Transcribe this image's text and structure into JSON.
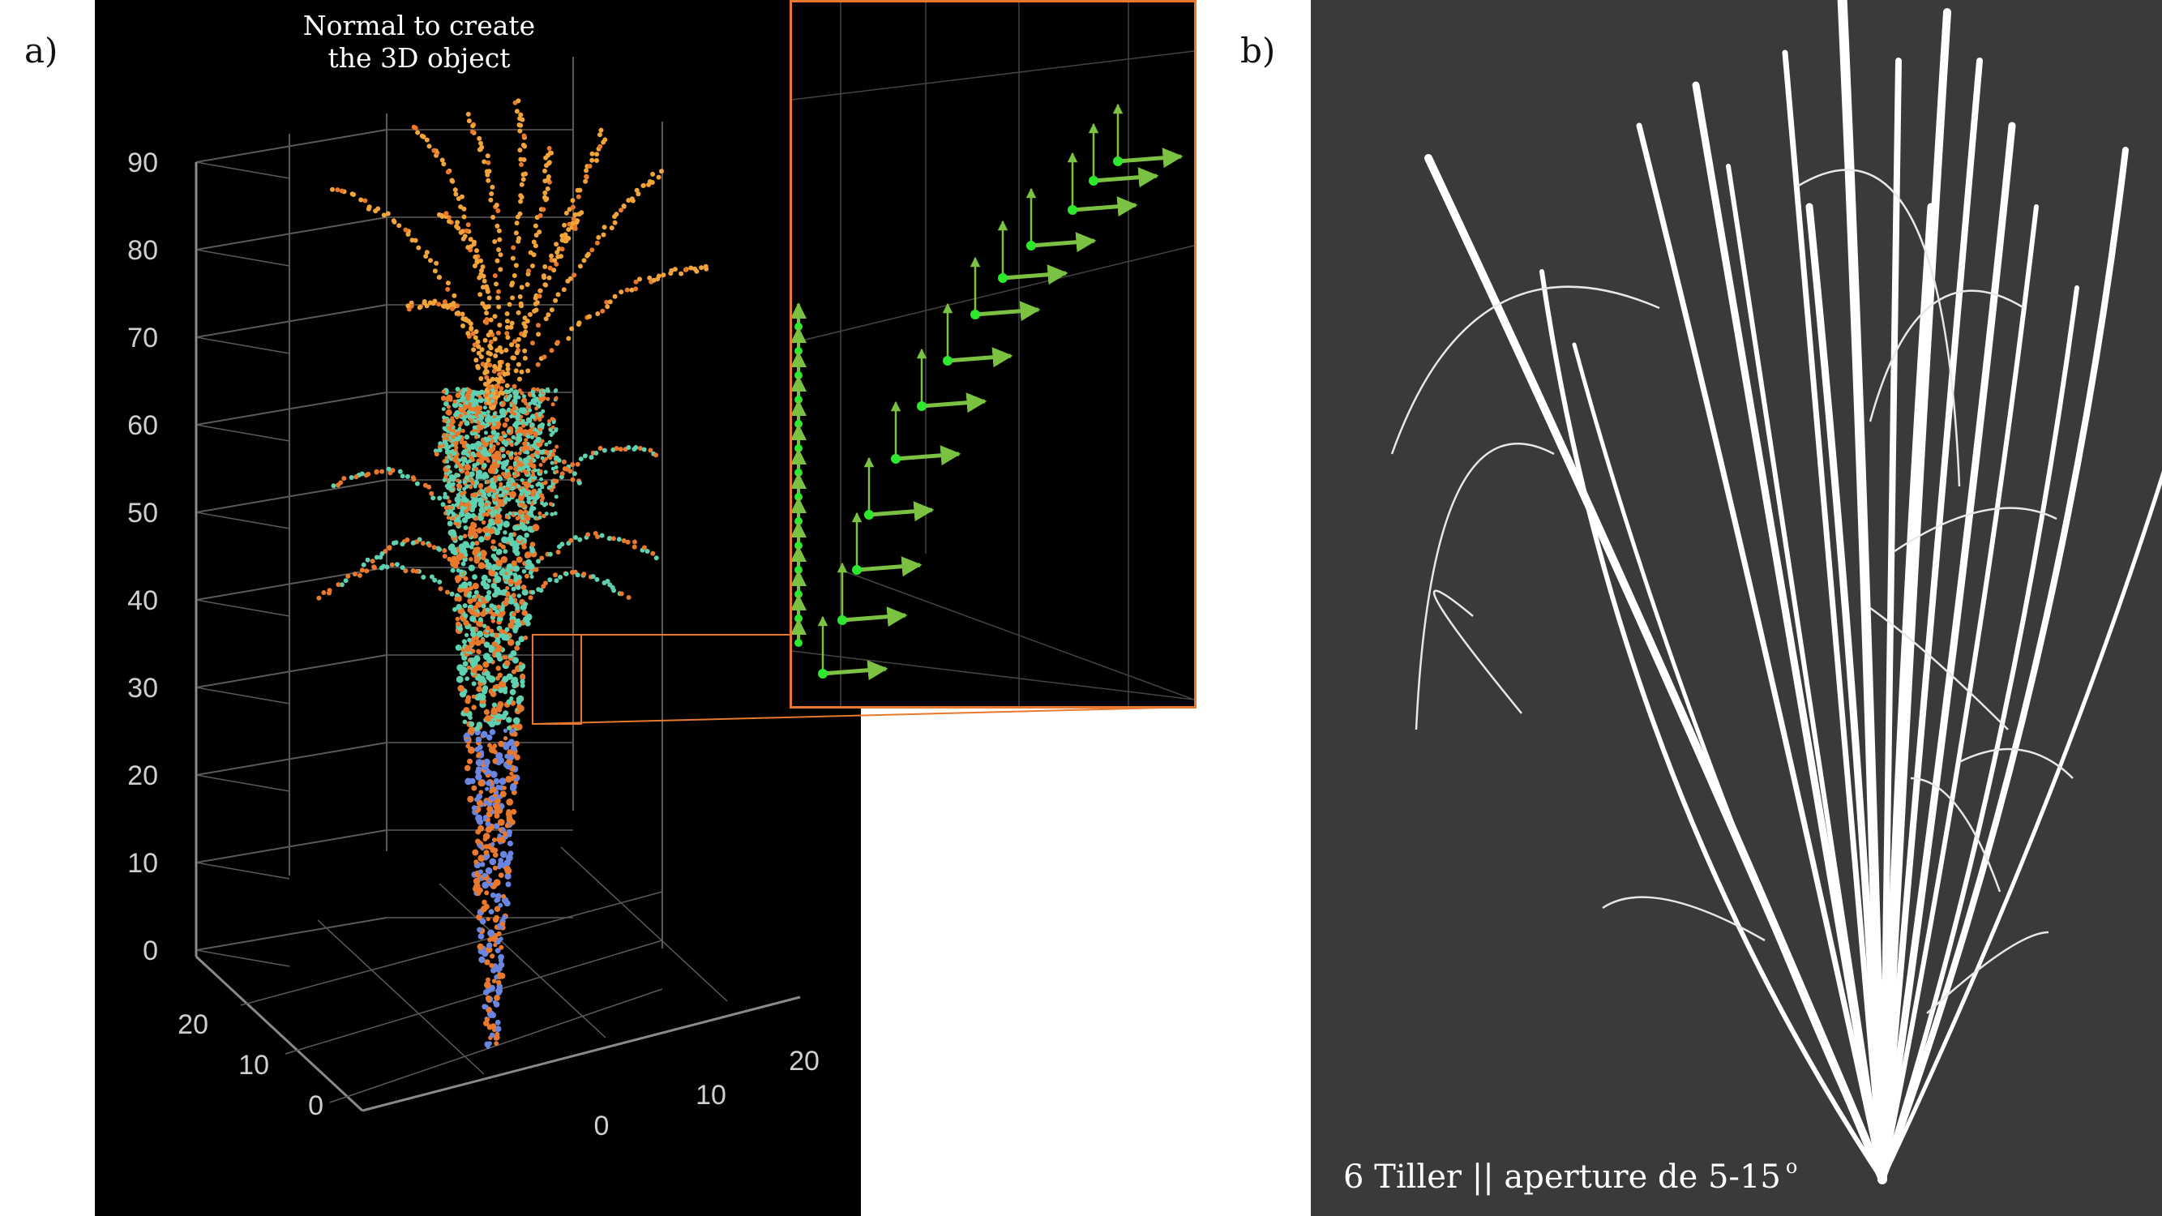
{
  "panel_a": {
    "label": "a)",
    "caption": "Normal to create\nthe 3D object",
    "z_ticks": [
      "90",
      "80",
      "70",
      "60",
      "50",
      "40",
      "30",
      "20",
      "10",
      "0"
    ],
    "y_ticks": [
      "20",
      "10",
      "0"
    ],
    "x_ticks": [
      "0",
      "10",
      "20"
    ],
    "colors": {
      "background": "#000000",
      "top_points": "#f2a43a",
      "mid_points": "#5fd0b0",
      "low_points": "#6b86e0",
      "accent": "#e8782c",
      "normal_arrows": "#7cc242"
    }
  },
  "panel_b": {
    "label": "b)",
    "caption": "6 Tiller || aperture de 5-15",
    "caption_sup": "o",
    "colors": {
      "background": "#3a3a3a",
      "leaves": "#ffffff"
    }
  }
}
